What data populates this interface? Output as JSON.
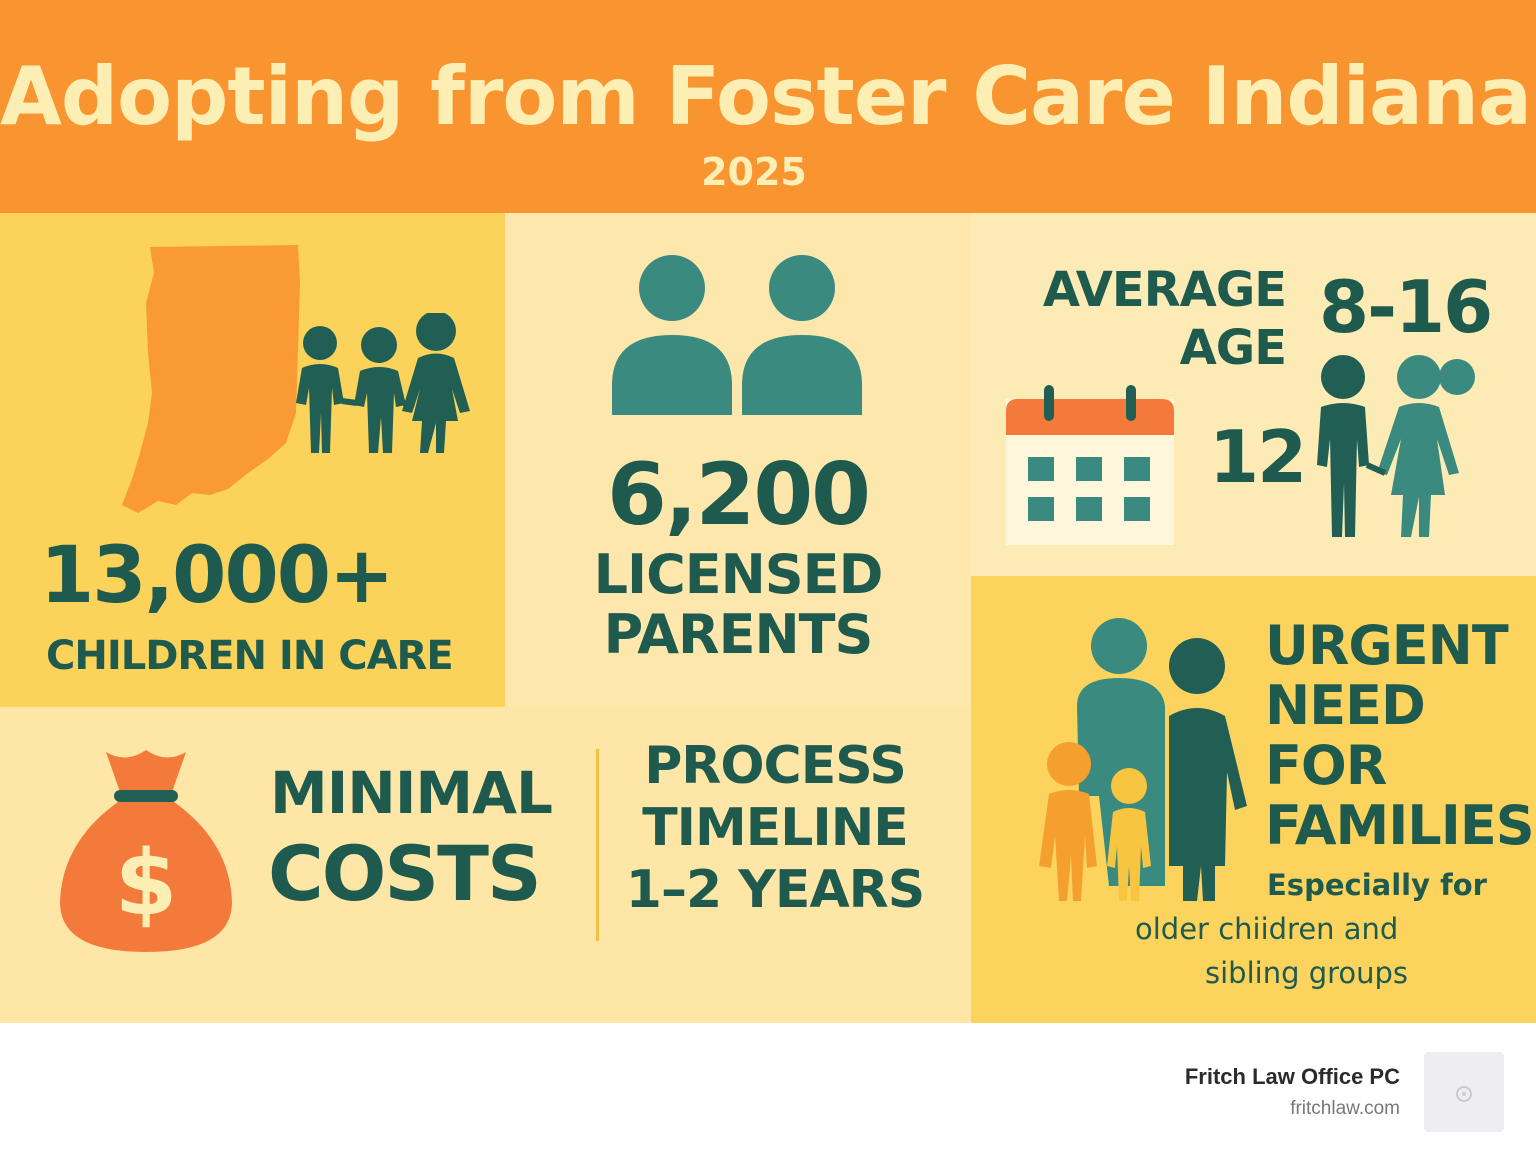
{
  "header": {
    "title": "Adopting from Foster Care Indiana",
    "year": "2025"
  },
  "stats": {
    "children": {
      "value": "13,000+",
      "label": "CHILDREN IN CARE"
    },
    "parents": {
      "value": "6,200",
      "label_line1": "LICENSED",
      "label_line2": "PARENTS"
    },
    "age": {
      "label_line1": "AVERAGE",
      "label_line2": "AGE",
      "range": "8-16",
      "average": "12"
    },
    "cost": {
      "line1": "MINIMAL",
      "line2": "COSTS"
    },
    "timeline": {
      "line1": "PROCESS",
      "line2": "TIMELINE",
      "line3": "1–2 YEARS"
    },
    "need": {
      "line1": "URGENT",
      "line2": "NEED",
      "line3": "FOR",
      "line4": "FAMILIES",
      "sub1": "Especially for",
      "sub2": "older chiidren and",
      "sub3": "sibling groups"
    }
  },
  "footer": {
    "company": "Fritch Law Office PC",
    "website": "fritchlaw.com"
  },
  "colors": {
    "orange": "#f89530",
    "cream": "#fdeeb4",
    "yellow": "#fcd35a",
    "teal": "#3a8a7f",
    "dark_teal": "#1f5a4e",
    "red_orange": "#f47a3c"
  },
  "icons": [
    "indiana-map-icon",
    "children-group-icon",
    "two-people-icon",
    "calendar-icon",
    "boy-girl-icon",
    "money-bag-icon",
    "family-icon",
    "logo-icon"
  ]
}
